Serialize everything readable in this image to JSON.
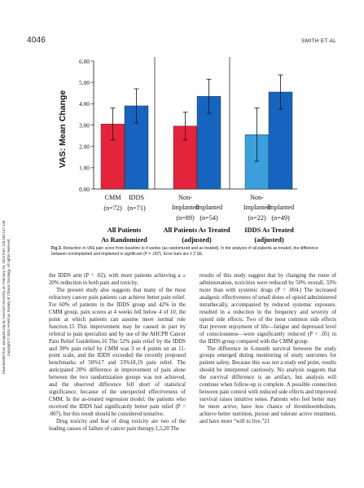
{
  "header": {
    "page_number": "4046",
    "running_head": "SMITH ET AL"
  },
  "sidebar_note": {
    "line1": "Downloaded from ascopubs.org by Harvard University on February 26, 2024 from 128.103.147.149",
    "line2": "Copyright © 2024 American Society of Clinical Oncology. All rights reserved."
  },
  "chart_data": {
    "type": "bar",
    "ylabel": "VAS: Mean Change",
    "ylim": [
      0,
      6
    ],
    "yticks": [
      "0.00",
      "1.00",
      "2.00",
      "3.00",
      "4.00",
      "5.00",
      "6.00"
    ],
    "error_bars": "±2 SE",
    "groups": [
      {
        "label_line1": "All Patients",
        "label_line2": "As Randomized",
        "bars": [
          {
            "name": "CMM",
            "n": "(n=72)",
            "value": 3.05,
            "err_low": 2.3,
            "err_high": 3.8,
            "color": "#e5243b"
          },
          {
            "name": "IDDS",
            "n": "(n=71)",
            "value": 3.9,
            "err_low": 3.1,
            "err_high": 4.7,
            "color": "#1565c0"
          }
        ]
      },
      {
        "label_line1": "All Patients As Treated",
        "label_line2": "(adjusted)",
        "bars": [
          {
            "name": "Non-\nImplanted",
            "n": "(n=89)",
            "value": 2.95,
            "err_low": 2.3,
            "err_high": 3.6,
            "color": "#e5243b"
          },
          {
            "name": "Implanted",
            "n": "(n=54)",
            "value": 4.35,
            "err_low": 3.55,
            "err_high": 5.15,
            "color": "#1565c0"
          }
        ]
      },
      {
        "label_line1": "IDDS As Treated",
        "label_line2": "(adjusted)",
        "bars": [
          {
            "name": "Non-\nImplanted",
            "n": "(n=22)",
            "value": 2.55,
            "err_low": 1.3,
            "err_high": 3.8,
            "color": "#3aa0dc"
          },
          {
            "name": "Implanted",
            "n": "(n=49)",
            "value": 4.55,
            "err_low": 3.75,
            "err_high": 5.35,
            "color": "#1565c0"
          }
        ]
      }
    ]
  },
  "caption": {
    "label": "Fig 3.",
    "text": "Reduction in VAS pain score from baseline to 4 weeks (as randomized and as treated). In the analysis of all patients as treated, the difference between nonimplanted and implanted is significant (P = .007). Error bars are ± 2 SE."
  },
  "body": {
    "left": [
      "the IDDS arm (P = .02), with more patients achieving a ≥ 20% reduction in both pain and toxicity.",
      "The present study also suggests that many of the most refractory cancer pain patients can achieve better pain relief. For 60% of patients in the IDDS group and 42% in the CMM group, pain scores at 4 weeks fell below 4 of 10, the point at which patients can assume more normal role function.15 This improvement may be caused in part by referral to pain specialists and by use of the AHCPR Cancer Pain Relief Guidelines.16 The 52% pain relief by the IDDS and 39% pain relief by CMM was 3 or 4 points on an 11-point scale, and the IDDS exceeded the recently proposed benchmarks of 50%17 and 33%18,19 pain relief. The anticipated 20% difference in improvement of pain alone between the two randomization groups was not achieved, and the observed difference fell short of statistical significance, because of the unexpected effectiveness of CMM. In the as-treated regression model, the patients who received the IDDS had significantly better pain relief (P = .007), but this result should be considered tentative.",
      "Drug toxicity and fear of drug toxicity are two of the leading causes of failure of cancer pain therapy.1,5,20 The"
    ],
    "right": [
      "results of this study suggest that by changing the route of administration, toxicities were reduced by 50% overall, 33% more than with systemic drugs (P = .004.) The increased analgesic effectiveness of small doses of opioid administered intrathecally, accompanied by reduced systemic exposure, resulted in a reduction in the frequency and severity of opioid side effects. Two of the most common side effects that prevent enjoyment of life—fatigue and depressed level of consciousness—were significantly reduced (P < .05) in the IDDS group compared with the CMM group.",
      "The difference in 6-month survival between the study groups emerged during monitoring of study outcomes for patient safety. Because this was not a study end point, results should be interpreted cautiously. No analysis suggests that the survival difference is an artifact, but analysis will continue when follow-up is complete. A possible connection between pain control with reduced side effects and improved survival raises intuitive sense. Patients who feel better may be more active, have less chance of thromboembolism, achieve better nutrition, pursue and tolerate active treatment, and have more “will to live.”21"
    ]
  }
}
